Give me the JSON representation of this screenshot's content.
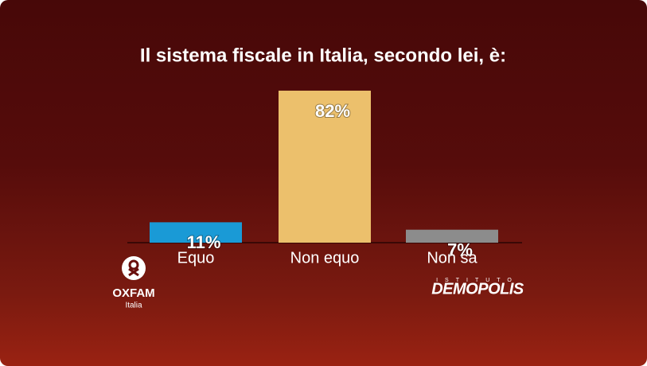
{
  "chart_data": {
    "type": "bar",
    "title": "Il sistema fiscale in Italia, secondo lei, è:",
    "categories": [
      "Equo",
      "Non equo",
      "Non sa"
    ],
    "values": [
      11,
      82,
      7
    ],
    "value_labels": [
      "11%",
      "82%",
      "7%"
    ],
    "colors": [
      "#1a9ad6",
      "#ecc06c",
      "#8c8c8c"
    ]
  },
  "logos": {
    "oxfam": "OXFAM",
    "oxfam_sub": "Italia",
    "demopolis_top": "ISTITUTO",
    "demopolis": "DEMOPOLIS"
  }
}
